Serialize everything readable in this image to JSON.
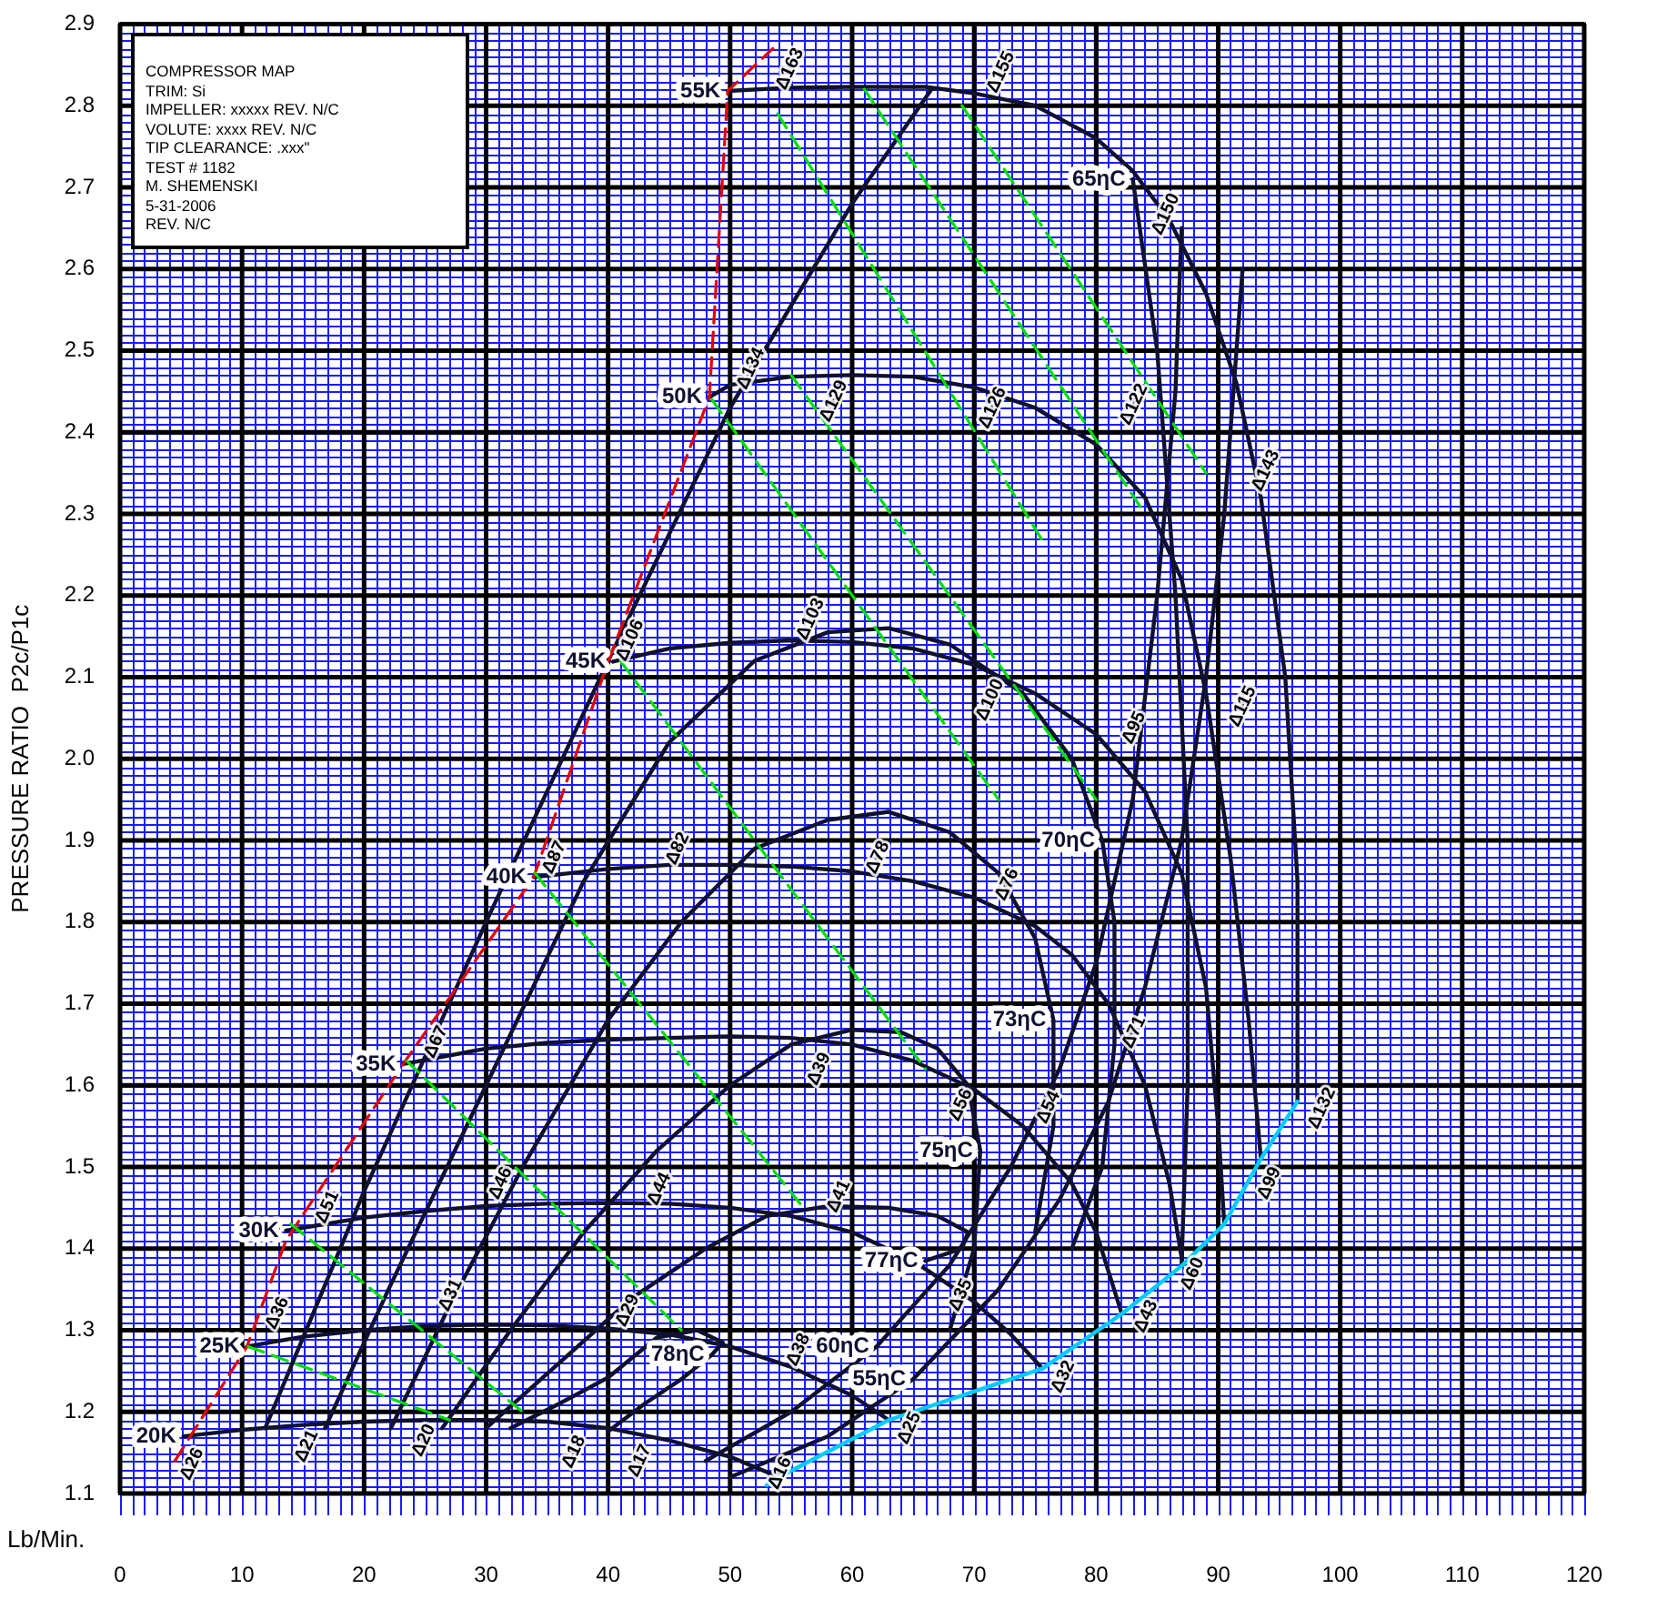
{
  "chart_data": {
    "type": "line",
    "xlabel": "Lb/Min.",
    "ylabel": "PRESSURE RATIO  P2c/P1c",
    "xlim": [
      0,
      120
    ],
    "xticks": [
      0,
      10,
      20,
      30,
      40,
      50,
      60,
      70,
      80,
      90,
      100,
      110,
      120
    ],
    "ylim": [
      1.1,
      2.9
    ],
    "yticks": [
      1.1,
      1.2,
      1.3,
      1.4,
      1.5,
      1.6,
      1.7,
      1.8,
      1.9,
      {
        "value": 2,
        "label": "2.0"
      },
      2.1,
      2.2,
      2.3,
      2.4,
      2.5,
      2.6,
      2.7,
      2.8,
      2.9
    ],
    "grid": true,
    "marker": "none",
    "annotations": [
      "COMPRESSOR MAP",
      "TRIM: Si",
      "IMPELLER: xxxxx  REV. N/C",
      "VOLUTE: xxxx  REV. N/C",
      "TIP CLEARANCE: .xxx\"",
      "TEST # 1182",
      "M. SHEMENSKI",
      "5-31-2006",
      "REV. N/C"
    ],
    "series": [
      {
        "color": "#00dd00",
        "line_style": "dashed",
        "x": [
          53.9,
          75.9,
          null,
          61,
          84,
          null,
          69,
          89,
          null,
          48.5,
          72,
          null,
          55,
          80,
          null,
          41,
          66,
          null,
          34,
          56,
          null,
          23.5,
          46,
          null,
          14,
          33,
          null,
          10.5,
          27
        ],
        "values": [
          2.79,
          2.26,
          null,
          2.82,
          2.3,
          null,
          2.8,
          2.35,
          null,
          2.44,
          1.95,
          null,
          2.47,
          1.95,
          null,
          2.12,
          1.62,
          null,
          1.86,
          1.45,
          null,
          1.63,
          1.3,
          null,
          1.43,
          1.2,
          null,
          1.28,
          1.19
        ]
      },
      {
        "color": "#00ccff",
        "x": [
          53,
          54,
          63,
          75.6,
          82.1,
          87.1,
          90.5,
          93.5,
          96.5
        ],
        "values": [
          1.11,
          1.12,
          1.19,
          1.253,
          1.32,
          1.38,
          1.43,
          1.51,
          1.58
        ]
      },
      {
        "color": "#e00000",
        "line_style": "dashed",
        "x": [
          4.5,
          10.4,
          13.6,
          23.2,
          33.9,
          40,
          48.3,
          49.8,
          53.5
        ],
        "values": [
          1.14,
          1.28,
          1.41,
          1.626,
          1.855,
          2.119,
          2.443,
          2.818,
          2.87
        ]
      },
      {
        "name": "20K",
        "color": "#101030",
        "x": [
          5.2,
          10,
          15,
          20,
          25,
          30,
          35,
          40,
          45,
          50,
          54
        ],
        "values": [
          1.17,
          1.178,
          1.184,
          1.188,
          1.19,
          1.19,
          1.188,
          1.18,
          1.165,
          1.145,
          1.12
        ]
      },
      {
        "name": "25K",
        "color": "#101030",
        "x": [
          10.4,
          15,
          20,
          25,
          30,
          35,
          40,
          45,
          50,
          55,
          60,
          63
        ],
        "values": [
          1.28,
          1.292,
          1.3,
          1.305,
          1.307,
          1.306,
          1.302,
          1.295,
          1.28,
          1.255,
          1.22,
          1.19
        ]
      },
      {
        "name": "30K",
        "color": "#101030",
        "x": [
          13.6,
          20,
          25,
          30,
          35,
          40,
          45,
          50,
          55,
          60,
          65,
          70,
          73,
          75.6
        ],
        "values": [
          1.422,
          1.438,
          1.446,
          1.452,
          1.455,
          1.456,
          1.455,
          1.45,
          1.44,
          1.42,
          1.385,
          1.335,
          1.295,
          1.253
        ]
      },
      {
        "name": "35K",
        "color": "#101030",
        "x": [
          23.2,
          30,
          35,
          40,
          45,
          50,
          55,
          60,
          65,
          70,
          74,
          78,
          80,
          82.1
        ],
        "values": [
          1.626,
          1.645,
          1.652,
          1.656,
          1.658,
          1.66,
          1.658,
          1.65,
          1.63,
          1.595,
          1.55,
          1.48,
          1.42,
          1.32
        ]
      },
      {
        "name": "40K",
        "color": "#101030",
        "x": [
          33.9,
          40,
          45,
          50,
          55,
          60,
          65,
          70,
          75,
          78,
          81,
          84,
          86,
          87.1
        ],
        "values": [
          1.855,
          1.865,
          1.87,
          1.87,
          1.868,
          1.862,
          1.85,
          1.83,
          1.795,
          1.76,
          1.7,
          1.6,
          1.48,
          1.38
        ]
      },
      {
        "name": "45K",
        "color": "#101030",
        "x": [
          40.4,
          45,
          50,
          55,
          60,
          65,
          70,
          75,
          80,
          84,
          87,
          89,
          90,
          90.5
        ],
        "values": [
          2.119,
          2.135,
          2.142,
          2.145,
          2.143,
          2.135,
          2.115,
          2.08,
          2.03,
          1.96,
          1.86,
          1.72,
          1.55,
          1.43
        ]
      },
      {
        "name": "50K",
        "color": "#101030",
        "x": [
          48.3,
          50,
          55,
          60,
          65,
          70,
          75,
          80,
          84,
          87,
          89,
          91,
          92.5,
          93.5
        ],
        "values": [
          2.443,
          2.458,
          2.468,
          2.47,
          2.468,
          2.455,
          2.43,
          2.385,
          2.32,
          2.22,
          2.08,
          1.88,
          1.68,
          1.51
        ]
      },
      {
        "name": "55K",
        "color": "#101030",
        "x": [
          49.8,
          55,
          60,
          66,
          70,
          75,
          80,
          83,
          86,
          89,
          91.5,
          93.5,
          95.5,
          96.5,
          96.5
        ],
        "values": [
          2.818,
          2.822,
          2.823,
          2.823,
          2.815,
          2.8,
          2.76,
          2.72,
          2.66,
          2.57,
          2.46,
          2.32,
          2.1,
          1.85,
          1.58
        ]
      },
      {
        "name": "78ηC",
        "color": "#101030",
        "x": [
          48.5,
          46,
          43,
          40,
          null,
          32,
          36,
          40,
          44,
          47.3,
          49.4,
          48.5
        ],
        "values": [
          1.27,
          1.24,
          1.21,
          1.176,
          null,
          1.18,
          1.21,
          1.242,
          1.291,
          1.3,
          1.285,
          1.27
        ]
      },
      {
        "name": "77ηC",
        "color": "#101030",
        "x": [
          66,
          69,
          69.5,
          67,
          63,
          58,
          53,
          48,
          42,
          36,
          30
        ],
        "values": [
          1.385,
          1.4,
          1.42,
          1.44,
          1.45,
          1.452,
          1.44,
          1.4,
          1.34,
          1.26,
          1.18
        ]
      },
      {
        "name": "75ηC",
        "color": "#101030",
        "x": [
          70.5,
          70,
          68,
          null,
          26.4,
          32,
          38,
          44,
          50,
          55,
          60,
          64,
          67,
          69.5,
          70.5
        ],
        "values": [
          1.52,
          1.4,
          1.3,
          null,
          1.18,
          1.3,
          1.42,
          1.52,
          1.6,
          1.65,
          1.668,
          1.665,
          1.645,
          1.6,
          1.52
        ]
      },
      {
        "name": "73ηC",
        "color": "#101030",
        "x": [
          76.5,
          76.5,
          75,
          null,
          22.2,
          27,
          33,
          40,
          46,
          52,
          58,
          63,
          68,
          72,
          75,
          76.5
        ],
        "values": [
          1.68,
          1.55,
          1.42,
          null,
          1.18,
          1.33,
          1.5,
          1.68,
          1.8,
          1.89,
          1.925,
          1.935,
          1.91,
          1.86,
          1.78,
          1.68
        ]
      },
      {
        "name": "70ηC",
        "color": "#101030",
        "x": [
          80.5,
          81.5,
          81.5,
          80.5,
          78,
          null,
          16.8,
          22,
          30,
          38,
          45,
          52,
          58,
          63,
          68,
          74,
          78,
          80.5
        ],
        "values": [
          1.9,
          1.8,
          1.65,
          1.5,
          1.4,
          null,
          1.18,
          1.35,
          1.6,
          1.85,
          2.02,
          2.12,
          2.155,
          2.16,
          2.14,
          2.08,
          2.0,
          1.9
        ]
      },
      {
        "name": "65ηC",
        "color": "#101030",
        "x": [
          83,
          85,
          86.5,
          87.5,
          87.5,
          87,
          null,
          11.9,
          20,
          30,
          40,
          50,
          60,
          66.5
        ],
        "values": [
          2.71,
          2.5,
          2.2,
          1.9,
          1.6,
          1.38,
          null,
          1.18,
          1.47,
          1.8,
          2.12,
          2.43,
          2.68,
          2.82
        ]
      },
      {
        "name": "60ηC",
        "color": "#101030",
        "x": [
          62,
          68,
          73,
          77,
          80,
          83,
          85,
          86.5,
          87,
          null,
          48,
          55,
          62
        ],
        "values": [
          1.28,
          1.38,
          1.5,
          1.62,
          1.75,
          1.95,
          2.2,
          2.45,
          2.65,
          null,
          1.14,
          1.2,
          1.28
        ]
      },
      {
        "name": "55ηC",
        "color": "#101030",
        "x": [
          65,
          72,
          77,
          81,
          84,
          87,
          89,
          90.5,
          91.5,
          92,
          null,
          50,
          58,
          65
        ],
        "values": [
          1.24,
          1.35,
          1.46,
          1.58,
          1.72,
          1.9,
          2.1,
          2.3,
          2.5,
          2.6,
          null,
          1.12,
          1.17,
          1.24
        ]
      },
      {
        "type": "scatter",
        "marker": "circle",
        "color": "#000000",
        "x": [
          5.9,
          15.3,
          24.9,
          37.2,
          42.6,
          12.9,
          17,
          25.9,
          31.2,
          27.1,
          44.2,
          41.6,
          54.1,
          64.7,
          55.6,
          68.9,
          77.3,
          84.1,
          87.9,
          94.2,
          98.5,
          58.9,
          57.3,
          68.9,
          76.1,
          83.1,
          56.6,
          71.3,
          83.1,
          92,
          45.7,
          62.1,
          72.7,
          35.6,
          41.8,
          54.9,
          72.2,
          85.7,
          93.9,
          51.7,
          58.5,
          71.5,
          83.1
        ],
        "values": [
          1.136,
          1.158,
          1.165,
          1.151,
          1.14,
          1.321,
          1.451,
          1.653,
          1.48,
          1.343,
          1.473,
          1.324,
          1.125,
          1.18,
          1.276,
          1.343,
          1.243,
          1.317,
          1.369,
          1.48,
          1.572,
          1.464,
          1.62,
          1.576,
          1.573,
          1.665,
          2.171,
          2.072,
          2.038,
          2.064,
          1.89,
          1.879,
          1.846,
          1.879,
          2.145,
          2.845,
          2.841,
          2.667,
          2.353,
          2.478,
          2.438,
          2.43,
          2.434
        ],
        "value_labels": [
          "Δ26",
          "Δ21",
          "Δ20",
          "Δ18",
          "Δ17",
          "Δ36",
          "Δ51",
          "Δ67",
          "Δ46",
          "Δ31",
          "Δ44",
          "Δ29",
          "Δ16",
          "Δ25",
          "Δ38",
          "Δ35",
          "Δ32",
          "Δ43",
          "Δ60",
          "Δ99",
          "Δ132",
          "Δ41",
          "Δ39",
          "Δ56",
          "Δ54",
          "Δ71",
          "Δ103",
          "Δ100",
          "Δ95",
          "Δ115",
          "Δ82",
          "Δ78",
          "Δ76",
          "Δ87",
          "Δ106",
          "Δ163",
          "Δ155",
          "Δ150",
          "Δ143",
          "Δ134",
          "Δ129",
          "Δ126",
          "Δ122"
        ]
      }
    ]
  }
}
